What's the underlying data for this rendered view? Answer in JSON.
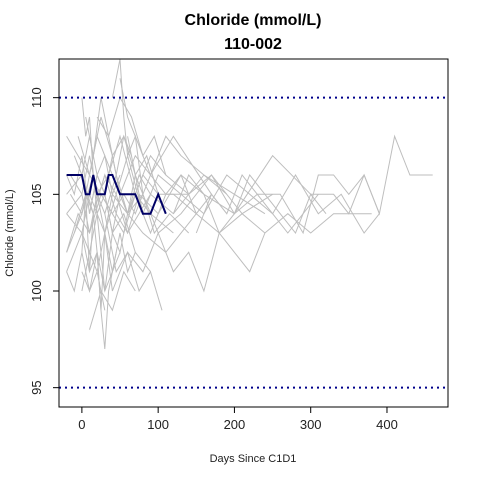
{
  "chart_data": {
    "type": "line",
    "title": "Chloride (mmol/L)",
    "subtitle": "110-002",
    "xlabel": "Days Since C1D1",
    "ylabel": "Chloride (mmol/L)",
    "xlim": [
      -30,
      480
    ],
    "ylim": [
      94,
      112
    ],
    "x_ticks": [
      0,
      100,
      200,
      300,
      400
    ],
    "y_ticks": [
      95,
      100,
      105,
      110
    ],
    "grid": false,
    "reference_lines": [
      {
        "y": 95,
        "style": "dotted",
        "color": "#00008B"
      },
      {
        "y": 110,
        "style": "dotted",
        "color": "#00008B"
      }
    ],
    "background_series_color": "#BEBEBE",
    "highlight_series_color": "#000066",
    "highlight_series": {
      "x": [
        -20,
        0,
        5,
        10,
        15,
        20,
        25,
        30,
        35,
        40,
        50,
        60,
        70,
        80,
        90,
        100,
        110
      ],
      "y": [
        106,
        106,
        105,
        105,
        106,
        105,
        105,
        105,
        106,
        106,
        105,
        105,
        105,
        104,
        104,
        105,
        104
      ]
    },
    "background_series": [
      {
        "x": [
          -20,
          0,
          10,
          20,
          30,
          40,
          60,
          80,
          100,
          120,
          150,
          180,
          210,
          240,
          270,
          300,
          330,
          360,
          380
        ],
        "y": [
          104,
          103,
          105,
          104,
          103,
          105,
          104,
          106,
          105,
          105,
          104,
          103,
          104,
          103,
          104,
          103,
          104,
          104,
          104
        ]
      },
      {
        "x": [
          -20,
          0,
          15,
          30,
          45,
          60,
          80,
          100,
          130,
          160,
          190,
          220,
          250,
          280,
          310,
          340,
          370,
          390
        ],
        "y": [
          102,
          104,
          106,
          103,
          105,
          107,
          104,
          106,
          105,
          104,
          106,
          105,
          104,
          106,
          104,
          105,
          103,
          104
        ]
      },
      {
        "x": [
          -15,
          0,
          10,
          25,
          40,
          55,
          70,
          90,
          110,
          140,
          170,
          200,
          230,
          260,
          290,
          310,
          330,
          350,
          370,
          390,
          410,
          430,
          460
        ],
        "y": [
          105,
          104,
          106,
          105,
          104,
          105,
          104,
          106,
          105,
          105,
          106,
          104,
          105,
          105,
          103,
          106,
          106,
          105,
          106,
          104,
          108,
          106,
          106
        ]
      },
      {
        "x": [
          -10,
          5,
          15,
          30,
          45,
          60,
          75,
          100,
          130,
          160,
          200,
          250,
          300,
          330,
          350,
          370,
          390
        ],
        "y": [
          103,
          105,
          104,
          106,
          104,
          103,
          105,
          104,
          106,
          105,
          104,
          107,
          105,
          105,
          104,
          106,
          104
        ]
      },
      {
        "x": [
          -20,
          -5,
          10,
          25,
          40,
          55,
          70,
          90,
          120
        ],
        "y": [
          102,
          104,
          103,
          105,
          104,
          103,
          105,
          104,
          103
        ]
      },
      {
        "x": [
          -15,
          0,
          10,
          20,
          35,
          50,
          70,
          90,
          110,
          140
        ],
        "y": [
          106,
          105,
          107,
          105,
          106,
          108,
          105,
          107,
          106,
          105
        ]
      },
      {
        "x": [
          -20,
          0,
          10,
          20,
          30,
          40,
          50,
          60,
          80,
          110,
          150
        ],
        "y": [
          101,
          103,
          102,
          104,
          100,
          103,
          102,
          104,
          103,
          102,
          104
        ]
      },
      {
        "x": [
          -10,
          0,
          10,
          20,
          30,
          50,
          70,
          90,
          120,
          170
        ],
        "y": [
          107,
          106,
          108,
          106,
          107,
          105,
          107,
          106,
          108,
          105
        ]
      },
      {
        "x": [
          -20,
          0,
          15,
          30,
          45,
          60,
          90,
          120,
          160,
          200,
          240
        ],
        "y": [
          105,
          106,
          104,
          106,
          105,
          103,
          105,
          104,
          106,
          105,
          104
        ]
      },
      {
        "x": [
          0,
          10,
          20,
          30,
          40,
          60,
          80,
          100
        ],
        "y": [
          100,
          102,
          101,
          103,
          100,
          102,
          101,
          103
        ]
      },
      {
        "x": [
          -5,
          10,
          25,
          40,
          55,
          70,
          85,
          100
        ],
        "y": [
          108,
          106,
          109,
          107,
          108,
          106,
          107,
          105
        ]
      },
      {
        "x": [
          -20,
          0,
          10,
          20,
          30,
          45,
          60,
          80,
          100,
          130,
          170,
          210,
          250
        ],
        "y": [
          104,
          105,
          103,
          105,
          104,
          106,
          104,
          105,
          103,
          104,
          106,
          104,
          105
        ]
      },
      {
        "x": [
          0,
          5,
          10,
          15,
          20,
          25,
          30,
          40,
          50
        ],
        "y": [
          102,
          105,
          101,
          104,
          102,
          99,
          103,
          101,
          102
        ]
      },
      {
        "x": [
          5,
          15,
          25,
          35,
          45,
          55,
          65
        ],
        "y": [
          109,
          107,
          110,
          108,
          106,
          108,
          107
        ]
      },
      {
        "x": [
          0,
          10,
          20,
          30,
          40,
          50,
          60,
          70
        ],
        "y": [
          101,
          100,
          102,
          100,
          101,
          103,
          101,
          102
        ]
      },
      {
        "x": [
          10,
          20,
          30,
          40,
          50,
          60,
          75,
          90
        ],
        "y": [
          104,
          106,
          105,
          107,
          105,
          104,
          106,
          105
        ]
      },
      {
        "x": [
          -20,
          -5,
          10,
          20,
          30,
          40,
          50
        ],
        "y": [
          108,
          107,
          106,
          108,
          107,
          105,
          106
        ]
      },
      {
        "x": [
          0,
          10,
          20,
          25,
          30,
          35,
          45
        ],
        "y": [
          103,
          101,
          102,
          99,
          97,
          100,
          102
        ]
      },
      {
        "x": [
          -20,
          -10,
          0,
          10,
          20,
          30,
          40,
          50,
          60,
          70,
          80
        ],
        "y": [
          106,
          105,
          107,
          104,
          106,
          105,
          103,
          105,
          104,
          106,
          105
        ]
      },
      {
        "x": [
          50,
          60,
          70,
          80,
          90,
          110,
          130,
          160,
          190
        ],
        "y": [
          111,
          109,
          108,
          107,
          106,
          108,
          107,
          106,
          105
        ]
      },
      {
        "x": [
          40,
          50,
          55,
          60,
          70,
          80,
          95,
          115,
          140
        ],
        "y": [
          110,
          112,
          109,
          107,
          108,
          105,
          103,
          104,
          103
        ]
      },
      {
        "x": [
          60,
          70,
          80,
          90,
          100,
          110,
          130,
          150,
          170
        ],
        "y": [
          108,
          106,
          104,
          103,
          104,
          105,
          106,
          104,
          105
        ]
      },
      {
        "x": [
          0,
          5,
          10,
          15,
          20,
          30,
          40,
          55,
          70,
          90
        ],
        "y": [
          110,
          108,
          109,
          106,
          104,
          105,
          103,
          104,
          102,
          101
        ]
      },
      {
        "x": [
          120,
          140,
          160,
          180,
          200,
          220,
          240,
          260,
          280,
          300,
          320
        ],
        "y": [
          104,
          106,
          105,
          103,
          104,
          106,
          105,
          104,
          103,
          105,
          104
        ]
      },
      {
        "x": [
          100,
          120,
          140,
          160,
          180,
          200,
          220,
          240
        ],
        "y": [
          103,
          101,
          102,
          100,
          103,
          102,
          101,
          103
        ]
      },
      {
        "x": [
          150,
          170,
          190,
          210,
          230,
          250,
          270,
          290,
          310
        ],
        "y": [
          103,
          105,
          104,
          106,
          105,
          104,
          103,
          104,
          105
        ]
      },
      {
        "x": [
          20,
          35,
          50,
          65,
          80,
          95,
          110
        ],
        "y": [
          109,
          108,
          110,
          109,
          107,
          108,
          106
        ]
      },
      {
        "x": [
          30,
          45,
          60,
          75,
          90,
          105
        ],
        "y": [
          104,
          101,
          102,
          100,
          101,
          99
        ]
      },
      {
        "x": [
          -20,
          -10,
          0,
          10,
          20,
          30
        ],
        "y": [
          101,
          100,
          102,
          100,
          101,
          99
        ]
      },
      {
        "x": [
          10,
          25,
          40,
          55,
          70
        ],
        "y": [
          98,
          100,
          99,
          101,
          100
        ]
      }
    ]
  }
}
